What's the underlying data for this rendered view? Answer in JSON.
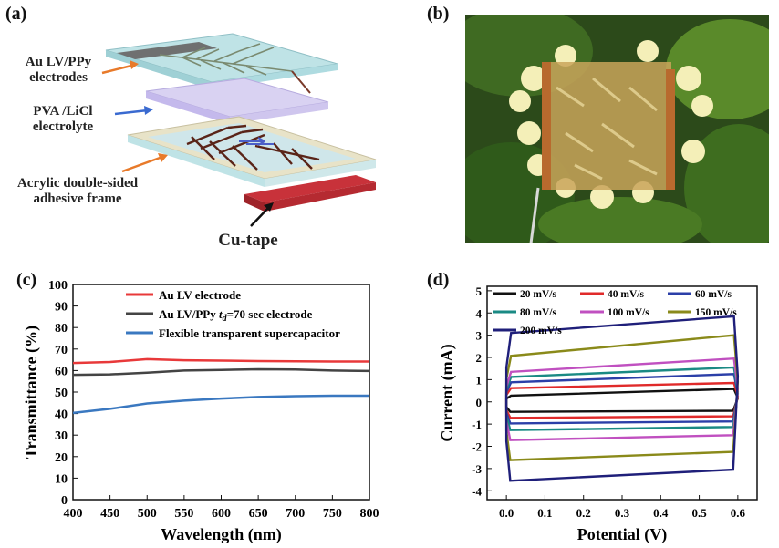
{
  "panels": {
    "a": {
      "label": "(a)"
    },
    "b": {
      "label": "(b)"
    },
    "c": {
      "label": "(c)"
    },
    "d": {
      "label": "(d)"
    }
  },
  "schematic": {
    "labels": {
      "electrodes_line1": "Au LV/PPy",
      "electrodes_line2": "electrodes",
      "electrolyte_line1": "PVA /LiCl",
      "electrolyte_line2": "electrolyte",
      "frame_line1": "Acrylic double-sided",
      "frame_line2": "adhesive frame",
      "tape": "Cu-tape"
    }
  },
  "chart_data": [
    {
      "type": "line",
      "panel": "c",
      "xlabel": "Wavelength (nm)",
      "ylabel": "Transmittance (%)",
      "xlim": [
        400,
        800
      ],
      "ylim": [
        0,
        100
      ],
      "x_ticks": [
        400,
        450,
        500,
        550,
        600,
        650,
        700,
        750,
        800
      ],
      "y_ticks": [
        0,
        10,
        20,
        30,
        40,
        50,
        60,
        70,
        80,
        90,
        100
      ],
      "legend_position": "top-left",
      "series": [
        {
          "name": "Au LV electrode",
          "color": "#e8393a",
          "x": [
            400,
            450,
            500,
            550,
            600,
            650,
            700,
            750,
            800
          ],
          "y": [
            63.5,
            64.0,
            65.3,
            64.8,
            64.6,
            64.4,
            64.3,
            64.2,
            64.2
          ]
        },
        {
          "name_parts": [
            "Au LV/PPy ",
            "t",
            "d",
            "=70 sec electrode"
          ],
          "color": "#444444",
          "x": [
            400,
            450,
            500,
            550,
            600,
            650,
            700,
            750,
            800
          ],
          "y": [
            58.0,
            58.2,
            59.0,
            60.0,
            60.3,
            60.6,
            60.5,
            60.0,
            59.8
          ]
        },
        {
          "name": "Flexible transparent supercapacitor",
          "color": "#3a78c0",
          "x": [
            400,
            450,
            500,
            550,
            600,
            650,
            700,
            750,
            800
          ],
          "y": [
            40.3,
            42.2,
            44.7,
            46.0,
            47.0,
            47.7,
            48.1,
            48.3,
            48.3
          ]
        }
      ]
    },
    {
      "type": "line",
      "panel": "d",
      "xlabel": "Potential (V)",
      "ylabel": "Current (mA)",
      "xlim": [
        -0.05,
        0.65
      ],
      "ylim": [
        -4.4,
        5.2
      ],
      "x_ticks": [
        0.0,
        0.1,
        0.2,
        0.3,
        0.4,
        0.5,
        0.6
      ],
      "y_ticks": [
        -4,
        -3,
        -2,
        -1,
        0,
        1,
        2,
        3,
        4,
        5
      ],
      "legend_position": "top-left",
      "series": [
        {
          "name": "20 mV/s",
          "color": "#111111",
          "upper_start": 0.28,
          "upper_end": 0.58,
          "lower_start": -0.45,
          "lower_end": -0.4
        },
        {
          "name": "40 mV/s",
          "color": "#e02a2a",
          "upper_start": 0.62,
          "upper_end": 0.85,
          "lower_start": -0.72,
          "lower_end": -0.65
        },
        {
          "name": "60 mV/s",
          "color": "#2b3fa8",
          "upper_start": 0.88,
          "upper_end": 1.25,
          "lower_start": -0.97,
          "lower_end": -0.88
        },
        {
          "name": "80 mV/s",
          "color": "#1a8a84",
          "upper_start": 1.12,
          "upper_end": 1.55,
          "lower_start": -1.27,
          "lower_end": -1.13
        },
        {
          "name": "100 mV/s",
          "color": "#c050c0",
          "upper_start": 1.35,
          "upper_end": 1.95,
          "lower_start": -1.72,
          "lower_end": -1.5
        },
        {
          "name": "150 mV/s",
          "color": "#8a8a1a",
          "upper_start": 2.07,
          "upper_end": 3.0,
          "lower_start": -2.62,
          "lower_end": -2.25
        },
        {
          "name": "200 mV/s",
          "color": "#1f1f7a",
          "upper_start": 3.1,
          "upper_end": 3.85,
          "lower_start": -3.55,
          "lower_end": -3.05
        }
      ]
    }
  ]
}
